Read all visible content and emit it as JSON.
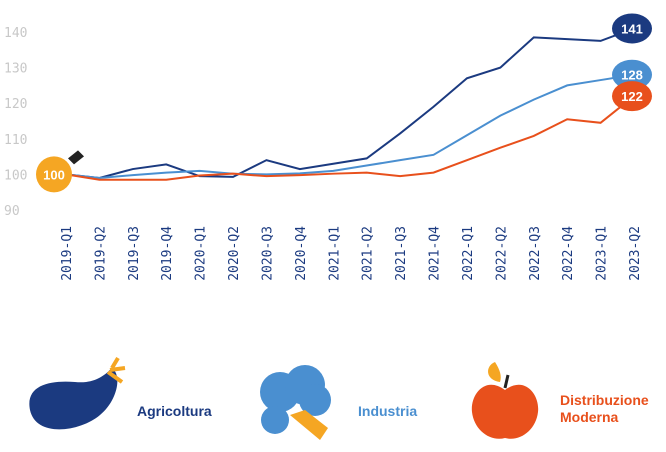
{
  "chart_data": {
    "type": "line",
    "categories": [
      "2019-Q1",
      "2019-Q2",
      "2019-Q3",
      "2019-Q4",
      "2020-Q1",
      "2020-Q2",
      "2020-Q3",
      "2020-Q4",
      "2021-Q1",
      "2021-Q2",
      "2021-Q3",
      "2021-Q4",
      "2022-Q1",
      "2022-Q2",
      "2022-Q3",
      "2022-Q4",
      "2023-Q1",
      "2023-Q2"
    ],
    "series": [
      {
        "name": "Agricoltura",
        "color": "#1b3a80",
        "values": [
          100,
          99,
          101.5,
          102.8,
          99.5,
          99.3,
          104,
          101.5,
          103,
          104.5,
          111.5,
          119,
          127,
          130,
          138.5,
          138,
          137.5,
          141
        ]
      },
      {
        "name": "Industria",
        "color": "#4a8fd0",
        "values": [
          100,
          99,
          99.8,
          100.5,
          101,
          100.2,
          100,
          100.3,
          101,
          102.5,
          104,
          105.5,
          111,
          116.5,
          121,
          125,
          126.5,
          128
        ]
      },
      {
        "name": "Distribuzione Moderna",
        "color": "#e8501c",
        "values": [
          100,
          98.5,
          98.5,
          98.5,
          99.7,
          100.2,
          99.5,
          99.8,
          100.2,
          100.5,
          99.5,
          100.5,
          104,
          107.5,
          110.8,
          115.5,
          114.5,
          122
        ]
      }
    ],
    "ylim": [
      90,
      140
    ],
    "yticks": [
      90,
      100,
      110,
      120,
      130,
      140
    ],
    "grid": false
  }
}
